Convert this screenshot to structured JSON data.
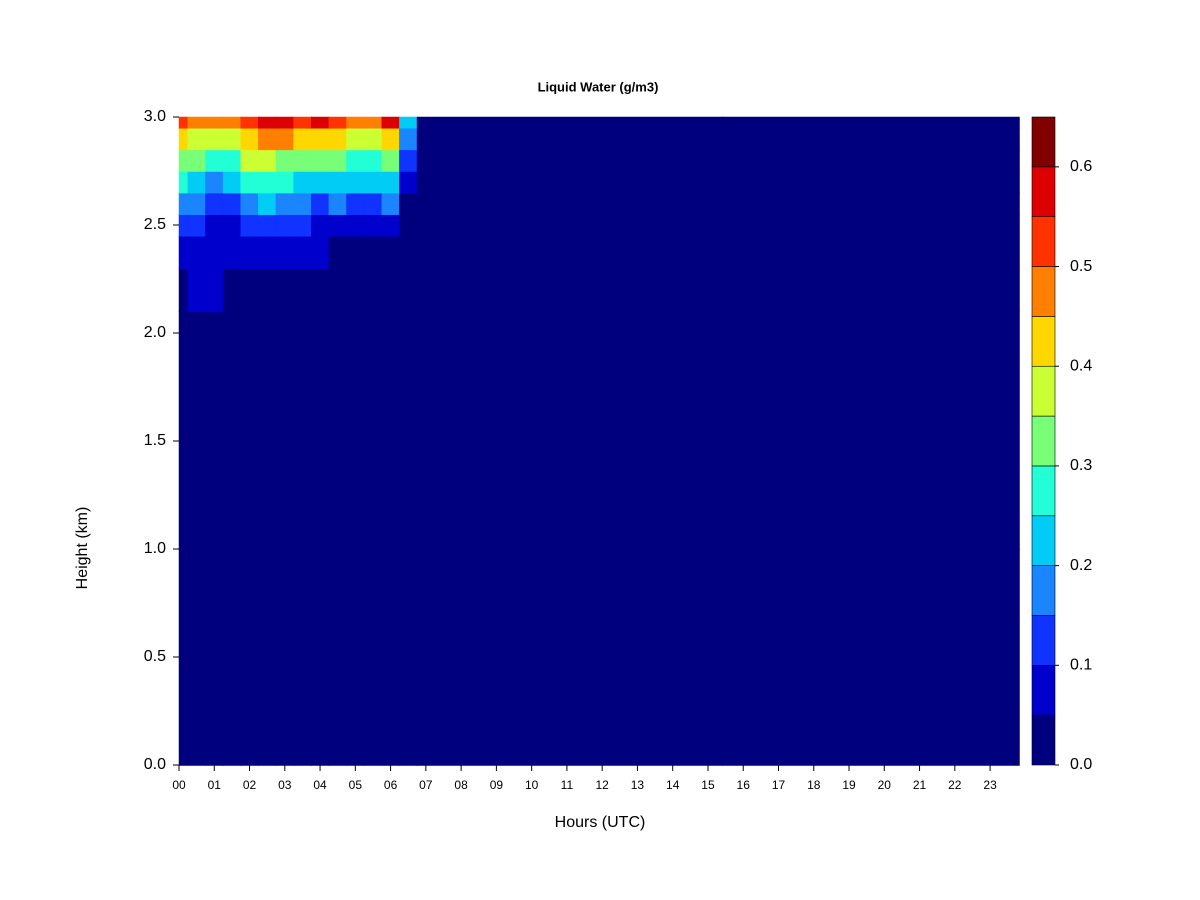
{
  "chart_data": {
    "type": "contour",
    "title": "Liquid Water (g/m3)",
    "x_label": "Hours (UTC)",
    "y_label": "Height (km)",
    "x": [
      0,
      0.5,
      1,
      1.5,
      2,
      2.5,
      3,
      3.5,
      4,
      4.5,
      5,
      5.5,
      6,
      6.5,
      7,
      23.82
    ],
    "y": [
      0,
      2.0,
      2.2,
      2.4,
      2.5,
      2.6,
      2.7,
      2.8,
      2.9,
      3.0
    ],
    "z": [
      [
        0,
        0,
        0,
        0,
        0,
        0,
        0,
        0,
        0,
        0,
        0,
        0,
        0,
        0,
        0,
        0
      ],
      [
        0,
        0.01,
        0.03,
        0,
        0,
        0,
        0,
        0,
        0,
        0,
        0,
        0,
        0,
        0,
        0,
        0
      ],
      [
        0.03,
        0.06,
        0.06,
        0.03,
        0.02,
        0.02,
        0.01,
        0.01,
        0.04,
        0.01,
        0,
        0,
        0,
        0,
        0,
        0
      ],
      [
        0.08,
        0.07,
        0.06,
        0.05,
        0.05,
        0.06,
        0.05,
        0.05,
        0.06,
        0.04,
        0.03,
        0.02,
        0.01,
        0,
        0,
        0
      ],
      [
        0.12,
        0.1,
        0.08,
        0.08,
        0.1,
        0.12,
        0.11,
        0.1,
        0.08,
        0.08,
        0.06,
        0.06,
        0.06,
        0,
        0,
        0
      ],
      [
        0.18,
        0.15,
        0.12,
        0.13,
        0.18,
        0.2,
        0.18,
        0.15,
        0.13,
        0.15,
        0.13,
        0.13,
        0.15,
        0.03,
        0,
        0
      ],
      [
        0.25,
        0.22,
        0.18,
        0.2,
        0.25,
        0.28,
        0.25,
        0.22,
        0.2,
        0.22,
        0.2,
        0.2,
        0.22,
        0.06,
        0,
        0
      ],
      [
        0.33,
        0.3,
        0.25,
        0.28,
        0.35,
        0.38,
        0.33,
        0.3,
        0.3,
        0.3,
        0.28,
        0.28,
        0.3,
        0.1,
        0,
        0
      ],
      [
        0.4,
        0.38,
        0.35,
        0.38,
        0.42,
        0.48,
        0.45,
        0.4,
        0.42,
        0.4,
        0.38,
        0.38,
        0.42,
        0.15,
        0,
        0
      ],
      [
        0.5,
        0.48,
        0.45,
        0.48,
        0.5,
        0.58,
        0.55,
        0.5,
        0.55,
        0.5,
        0.48,
        0.45,
        0.55,
        0.2,
        0,
        0
      ]
    ],
    "xlim": [
      0,
      23.82
    ],
    "ylim": [
      0,
      3
    ],
    "xticks": [
      {
        "value": 0,
        "label": "00"
      },
      {
        "value": 1,
        "label": "01"
      },
      {
        "value": 2,
        "label": "02"
      },
      {
        "value": 3,
        "label": "03"
      },
      {
        "value": 4,
        "label": "04"
      },
      {
        "value": 5,
        "label": "05"
      },
      {
        "value": 6,
        "label": "06"
      },
      {
        "value": 7,
        "label": "07"
      },
      {
        "value": 8,
        "label": "08"
      },
      {
        "value": 9,
        "label": "09"
      },
      {
        "value": 10,
        "label": "10"
      },
      {
        "value": 11,
        "label": "11"
      },
      {
        "value": 12,
        "label": "12"
      },
      {
        "value": 13,
        "label": "13"
      },
      {
        "value": 14,
        "label": "14"
      },
      {
        "value": 15,
        "label": "15"
      },
      {
        "value": 16,
        "label": "16"
      },
      {
        "value": 17,
        "label": "17"
      },
      {
        "value": 18,
        "label": "18"
      },
      {
        "value": 19,
        "label": "19"
      },
      {
        "value": 20,
        "label": "20"
      },
      {
        "value": 21,
        "label": "21"
      },
      {
        "value": 22,
        "label": "22"
      },
      {
        "value": 23,
        "label": "23"
      }
    ],
    "yticks": [
      {
        "value": 0,
        "label": "0.0"
      },
      {
        "value": 0.5,
        "label": "0.5"
      },
      {
        "value": 1,
        "label": "1.0"
      },
      {
        "value": 1.5,
        "label": "1.5"
      },
      {
        "value": 2,
        "label": "2.0"
      },
      {
        "value": 2.5,
        "label": "2.5"
      },
      {
        "value": 3,
        "label": "3.0"
      }
    ],
    "levels": [
      0,
      0.05,
      0.1,
      0.15,
      0.2,
      0.25,
      0.3,
      0.35,
      0.4,
      0.45,
      0.5,
      0.55,
      0.6,
      0.65
    ],
    "colors": [
      "#00007f",
      "#0000cc",
      "#1133ff",
      "#1a85ff",
      "#00ccf5",
      "#22ffd6",
      "#77ff77",
      "#ccff33",
      "#ffd700",
      "#ff8000",
      "#ff3300",
      "#dd0000",
      "#800000"
    ],
    "colorbar_ticks": [
      {
        "value": 0,
        "label": "0.0"
      },
      {
        "value": 0.1,
        "label": "0.1"
      },
      {
        "value": 0.2,
        "label": "0.2"
      },
      {
        "value": 0.3,
        "label": "0.3"
      },
      {
        "value": 0.4,
        "label": "0.4"
      },
      {
        "value": 0.5,
        "label": "0.5"
      },
      {
        "value": 0.6,
        "label": "0.6"
      }
    ]
  }
}
